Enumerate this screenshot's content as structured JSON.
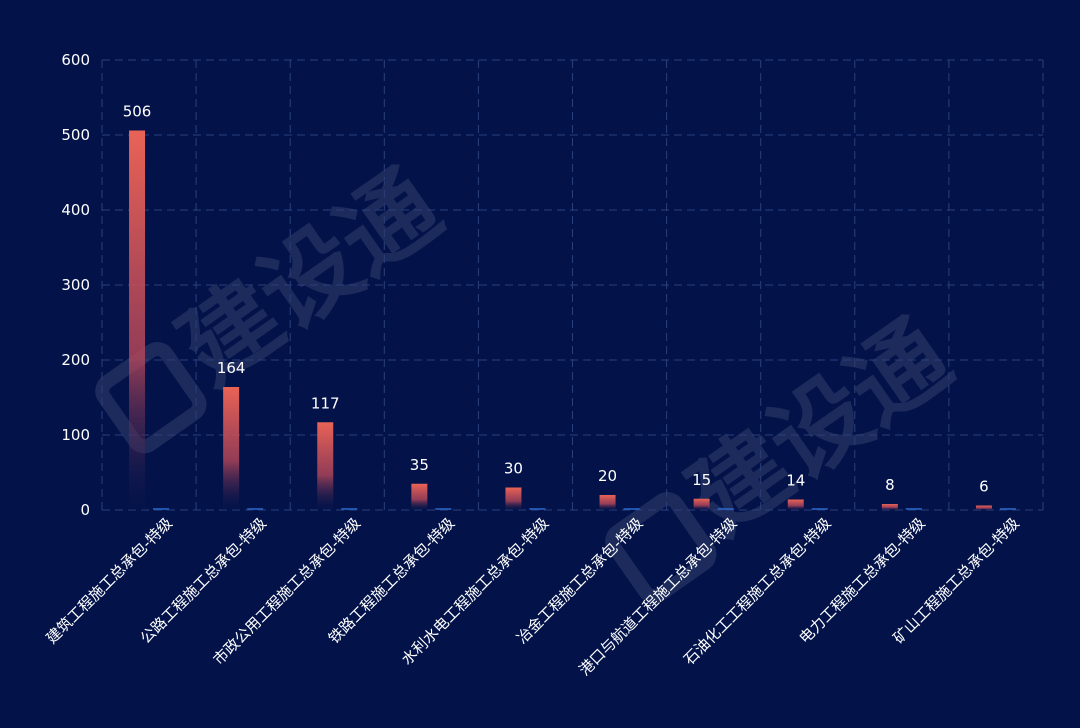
{
  "chart_data": {
    "type": "bar",
    "categories": [
      "建筑工程施工总承包-特级",
      "公路工程施工总承包-特级",
      "市政公用工程施工总承包-特级",
      "铁路工程施工总承包-特级",
      "水利水电工程施工总承包-特级",
      "冶金工程施工总承包-特级",
      "港口与航道工程施工总承包-特级",
      "石油化工工程施工总承包-特级",
      "电力工程施工总承包-特级",
      "矿山工程施工总承包-特级"
    ],
    "series": [
      {
        "values": [
          506,
          164,
          117,
          35,
          30,
          20,
          15,
          14,
          8,
          6
        ],
        "color": "#e8625a"
      },
      {
        "values": [
          0,
          0,
          0,
          0,
          0,
          0,
          0,
          0,
          0,
          0
        ],
        "color": "#2f6fd6"
      }
    ],
    "data_labels": [
      "506",
      "164",
      "117",
      "35",
      "30",
      "20",
      "15",
      "14",
      "8",
      "6"
    ],
    "yticks": [
      "0",
      "100",
      "200",
      "300",
      "400",
      "500",
      "600"
    ],
    "ylim": [
      0,
      600
    ],
    "grid": true,
    "title": "",
    "xlabel": "",
    "ylabel": ""
  },
  "watermark": "建设通"
}
